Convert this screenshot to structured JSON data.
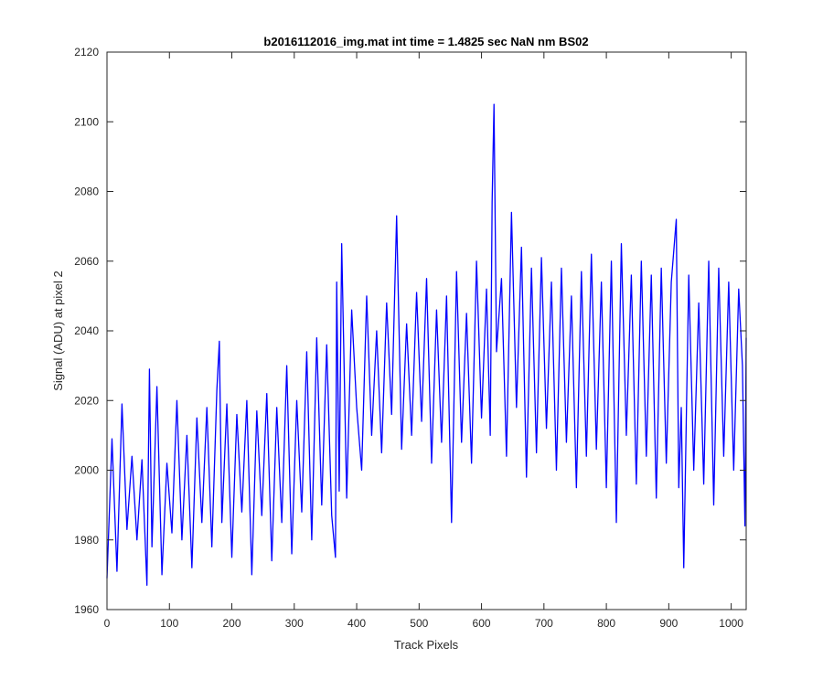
{
  "chart_data": {
    "type": "line",
    "title": "b2016112016_img.mat int time = 1.4825 sec  NaN nm BS02",
    "xlabel": "Track Pixels",
    "ylabel": "Signal (ADU) at pixel 2",
    "xlim": [
      0,
      1024
    ],
    "ylim": [
      1960,
      2120
    ],
    "xticks": [
      0,
      100,
      200,
      300,
      400,
      500,
      600,
      700,
      800,
      900,
      1000
    ],
    "yticks": [
      1960,
      1980,
      2000,
      2020,
      2040,
      2060,
      2080,
      2100,
      2120
    ],
    "grid": false,
    "series": [
      {
        "color": "#0000ff",
        "x": [
          0,
          8,
          16,
          24,
          32,
          40,
          48,
          56,
          64,
          68,
          72,
          80,
          88,
          96,
          104,
          112,
          120,
          128,
          136,
          144,
          152,
          160,
          168,
          176,
          180,
          184,
          192,
          200,
          208,
          216,
          224,
          232,
          240,
          248,
          256,
          264,
          272,
          280,
          288,
          296,
          304,
          312,
          320,
          328,
          336,
          344,
          352,
          360,
          366,
          368,
          372,
          376,
          384,
          392,
          400,
          408,
          416,
          424,
          432,
          440,
          448,
          456,
          464,
          472,
          480,
          488,
          496,
          504,
          512,
          520,
          528,
          536,
          544,
          552,
          560,
          568,
          576,
          584,
          592,
          600,
          608,
          614,
          617,
          620,
          624,
          632,
          640,
          648,
          656,
          664,
          672,
          680,
          688,
          696,
          704,
          712,
          720,
          728,
          736,
          744,
          752,
          760,
          768,
          776,
          784,
          792,
          800,
          808,
          816,
          824,
          832,
          840,
          848,
          856,
          864,
          872,
          880,
          888,
          896,
          904,
          912,
          916,
          920,
          924,
          932,
          940,
          948,
          956,
          964,
          972,
          980,
          988,
          996,
          1004,
          1012,
          1018,
          1022,
          1024
        ],
        "y": [
          1969,
          2009,
          1971,
          2019,
          1983,
          2004,
          1980,
          2003,
          1967,
          2029,
          1978,
          2024,
          1970,
          2002,
          1982,
          2020,
          1980,
          2010,
          1972,
          2015,
          1985,
          2018,
          1978,
          2023,
          2037,
          1985,
          2019,
          1975,
          2016,
          1988,
          2020,
          1970,
          2017,
          1987,
          2022,
          1974,
          2018,
          1985,
          2030,
          1976,
          2020,
          1988,
          2034,
          1980,
          2038,
          1990,
          2036,
          1987,
          1975,
          2054,
          1994,
          2065,
          1992,
          2046,
          2018,
          2000,
          2050,
          2010,
          2040,
          2005,
          2048,
          2016,
          2073,
          2006,
          2042,
          2010,
          2051,
          2014,
          2055,
          2002,
          2046,
          2008,
          2050,
          1985,
          2057,
          2008,
          2045,
          2002,
          2060,
          2015,
          2052,
          2010,
          2077,
          2105,
          2034,
          2055,
          2004,
          2074,
          2018,
          2064,
          1998,
          2058,
          2005,
          2061,
          2012,
          2054,
          2000,
          2058,
          2008,
          2050,
          1995,
          2057,
          2004,
          2062,
          2006,
          2054,
          1995,
          2060,
          1985,
          2065,
          2010,
          2056,
          1996,
          2060,
          2004,
          2056,
          1992,
          2058,
          2002,
          2054,
          2072,
          1995,
          2018,
          1972,
          2056,
          2000,
          2048,
          1996,
          2060,
          1990,
          2058,
          2004,
          2054,
          2000,
          2052,
          2030,
          1984,
          2038
        ]
      }
    ]
  }
}
